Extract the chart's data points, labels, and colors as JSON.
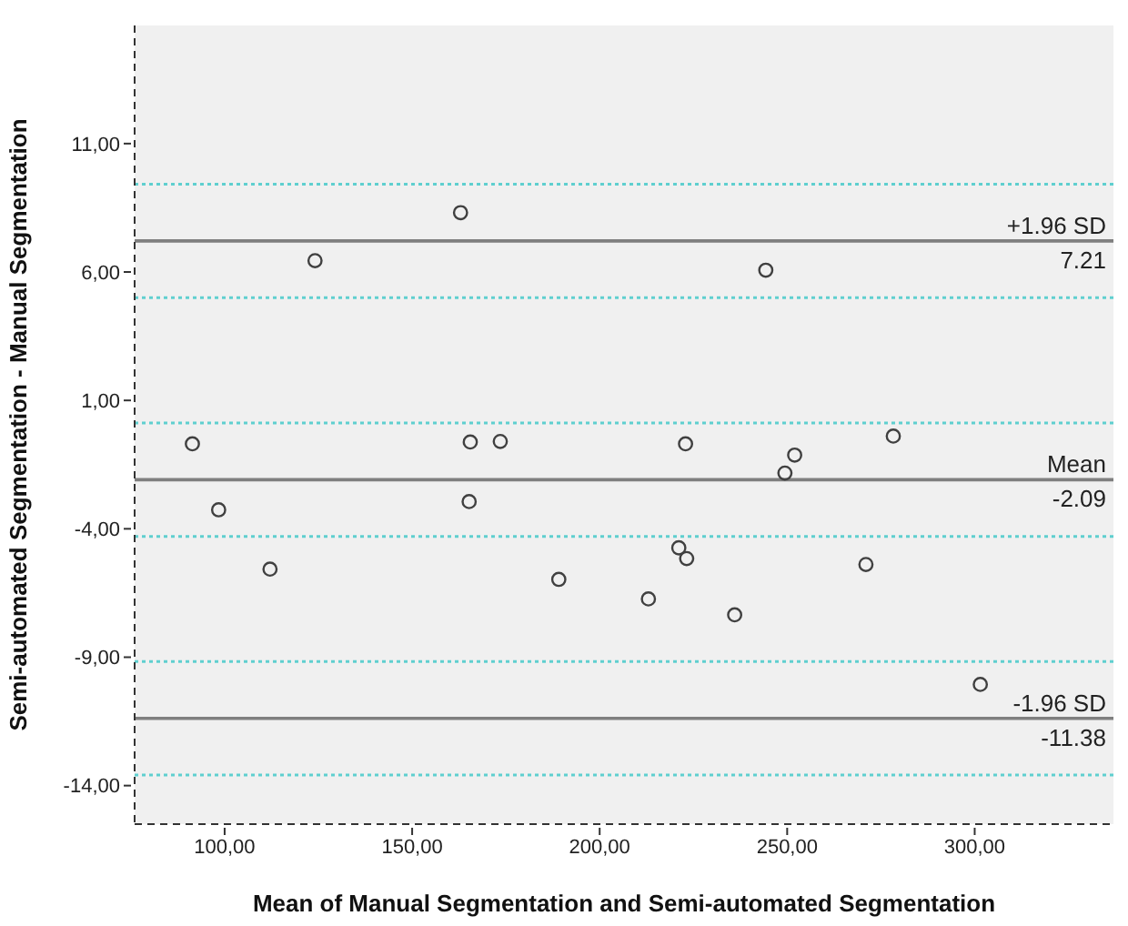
{
  "chart_data": {
    "type": "scatter",
    "xlabel": "Mean of Manual Segmentation and Semi-automated Segmentation",
    "ylabel": "Semi-automated Segmentation - Manual Segmentation",
    "x": [
      162.9,
      124.1,
      244.3,
      91.4,
      98.4,
      112.1,
      165.5,
      173.5,
      165.2,
      189.1,
      213.0,
      221.1,
      223.2,
      222.9,
      236.0,
      249.4,
      252.0,
      278.3,
      271.0,
      301.5
    ],
    "series": [
      {
        "color": "#404040",
        "values": [
          8.31,
          6.44,
          6.07,
          -0.69,
          -3.26,
          -5.57,
          -0.62,
          -0.6,
          -2.94,
          -5.97,
          -6.73,
          -4.74,
          -5.16,
          -0.69,
          -7.35,
          -1.83,
          -1.13,
          -0.39,
          -5.39,
          -10.06
        ]
      }
    ],
    "marker": "circle",
    "xlim": [
      76,
      337
    ],
    "xticks": [
      {
        "value": 100,
        "label": "100,00"
      },
      {
        "value": 150,
        "label": "150,00"
      },
      {
        "value": 200,
        "label": "200,00"
      },
      {
        "value": 250,
        "label": "250,00"
      },
      {
        "value": 300,
        "label": "300,00"
      }
    ],
    "ylim": [
      -15.5,
      15.6
    ],
    "yticks": [
      {
        "value": -14,
        "label": "-14,00"
      },
      {
        "value": -9,
        "label": "-9,00"
      },
      {
        "value": -4,
        "label": "-4,00"
      },
      {
        "value": 1,
        "label": "1,00"
      },
      {
        "value": 6,
        "label": "6,00"
      },
      {
        "value": 11,
        "label": "11,00"
      }
    ],
    "grid": false,
    "legend": false,
    "ref_lines": [
      {
        "axis": "y",
        "value": 7.21,
        "label": "+1.96 SD\n7.21",
        "color": "#7f7f7f",
        "line_style": "solid"
      },
      {
        "axis": "y",
        "value": -2.09,
        "label": "Mean\n-2.09",
        "color": "#7f7f7f",
        "line_style": "solid"
      },
      {
        "axis": "y",
        "value": -11.38,
        "label": "-1.96 SD\n-11.38",
        "color": "#7f7f7f",
        "line_style": "solid"
      },
      {
        "axis": "y",
        "value": 9.42,
        "color": "#5fcfcf",
        "line_style": "dotted"
      },
      {
        "axis": "y",
        "value": 5.0,
        "color": "#5fcfcf",
        "line_style": "dotted"
      },
      {
        "axis": "y",
        "value": 0.12,
        "color": "#5fcfcf",
        "line_style": "dotted"
      },
      {
        "axis": "y",
        "value": -4.3,
        "color": "#5fcfcf",
        "line_style": "dotted"
      },
      {
        "axis": "y",
        "value": -9.17,
        "color": "#5fcfcf",
        "line_style": "dotted"
      },
      {
        "axis": "y",
        "value": -13.59,
        "color": "#5fcfcf",
        "line_style": "dotted"
      }
    ]
  }
}
